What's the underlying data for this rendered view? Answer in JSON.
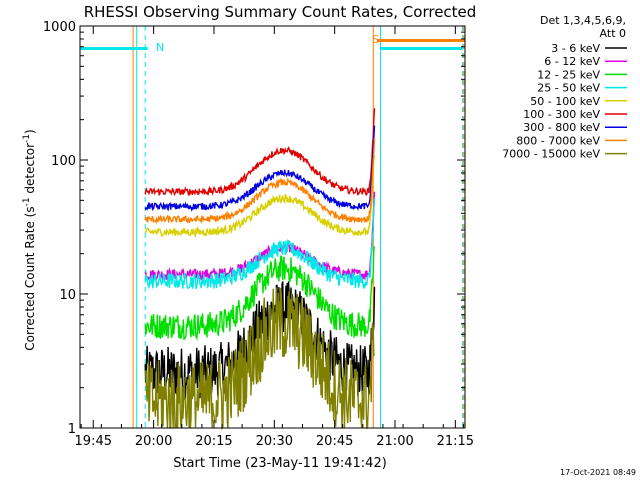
{
  "chart_data": {
    "type": "line",
    "title": "RHESSI Observing Summary Count Rates, Corrected",
    "xlabel": "Start Time (23-May-11 19:41:42)",
    "ylabel_main": "Corrected Count Rate (s",
    "ylabel_sup1": "-1",
    "ylabel_mid": " detector",
    "ylabel_sup2": "-1",
    "ylabel_end": ")",
    "xlim": [
      19.695,
      21.29
    ],
    "ylim": [
      1,
      1000
    ],
    "yscale": "log",
    "x_ticks": [
      {
        "value": 19.75,
        "label": "19:45"
      },
      {
        "value": 20.0,
        "label": "20:00"
      },
      {
        "value": 20.25,
        "label": "20:15"
      },
      {
        "value": 20.5,
        "label": "20:30"
      },
      {
        "value": 20.75,
        "label": "20:45"
      },
      {
        "value": 21.0,
        "label": "21:00"
      },
      {
        "value": 21.25,
        "label": "21:15"
      }
    ],
    "y_ticks": [
      {
        "value": 1,
        "label": "1"
      },
      {
        "value": 10,
        "label": "10"
      },
      {
        "value": 100,
        "label": "100"
      },
      {
        "value": 1000,
        "label": "1000"
      }
    ],
    "legend_header": [
      "Det 1,3,4,5,6,9,",
      "Att 0"
    ],
    "legend_position": "right",
    "timestamp": "17-Oct-2021 08:49",
    "series": [
      {
        "name": "3 - 6 keV",
        "color": "#000000",
        "base": 2.6,
        "peak": 8.0,
        "noise": 0.2
      },
      {
        "name": "6 - 12 keV",
        "color": "#e000e0",
        "base": 14.0,
        "peak": 22.0,
        "noise": 0.04
      },
      {
        "name": "12 - 25 keV",
        "color": "#00e000",
        "base": 5.8,
        "peak": 15.5,
        "noise": 0.1
      },
      {
        "name": "25 - 50 keV",
        "color": "#00e8e8",
        "base": 12.5,
        "peak": 22.0,
        "noise": 0.06
      },
      {
        "name": "50 - 100 keV",
        "color": "#d8d000",
        "base": 29.0,
        "peak": 52.0,
        "noise": 0.03
      },
      {
        "name": "100 - 300 keV",
        "color": "#e00000",
        "base": 58.0,
        "peak": 118.0,
        "noise": 0.025
      },
      {
        "name": "300 - 800 keV",
        "color": "#0000e0",
        "base": 45.0,
        "peak": 80.0,
        "noise": 0.025
      },
      {
        "name": "800 - 7000 keV",
        "color": "#ff8000",
        "base": 36.0,
        "peak": 68.0,
        "noise": 0.025
      },
      {
        "name": "7000 - 15000 keV",
        "color": "#808000",
        "base": 1.6,
        "peak": 6.0,
        "noise": 0.3
      }
    ],
    "data_window": [
      19.965,
      20.915
    ],
    "peak_time": 20.54,
    "annotations": [
      {
        "text": "N",
        "x": 20.01,
        "y": 700,
        "color": "#00e8e8"
      },
      {
        "text": "S",
        "x": 20.905,
        "y": 800,
        "color": "#ff8000"
      }
    ],
    "segments": [
      {
        "color": "#00e8e8",
        "x1": 19.695,
        "x2": 19.975,
        "y": 680
      },
      {
        "color": "#ff8000",
        "x1": 20.925,
        "x2": 21.29,
        "y": 780
      },
      {
        "color": "#00e8e8",
        "x1": 20.94,
        "x2": 21.28,
        "y": 680
      }
    ],
    "vlines": [
      {
        "color": "#00e8e8",
        "x": 19.695,
        "dashed": false
      },
      {
        "color": "#00e8e8",
        "x": 19.965,
        "dashed": true
      },
      {
        "color": "#00e8e8",
        "x": 19.93,
        "dashed": false
      },
      {
        "color": "#ff8000",
        "x": 19.915,
        "dashed": false
      },
      {
        "color": "#ff8000",
        "x": 20.91,
        "dashed": false
      },
      {
        "color": "#00e8e8",
        "x": 20.94,
        "dashed": false
      },
      {
        "color": "#00e8e8",
        "x": 21.28,
        "dashed": true
      },
      {
        "color": "#ff8000",
        "x": 21.285,
        "dashed": true
      }
    ]
  }
}
